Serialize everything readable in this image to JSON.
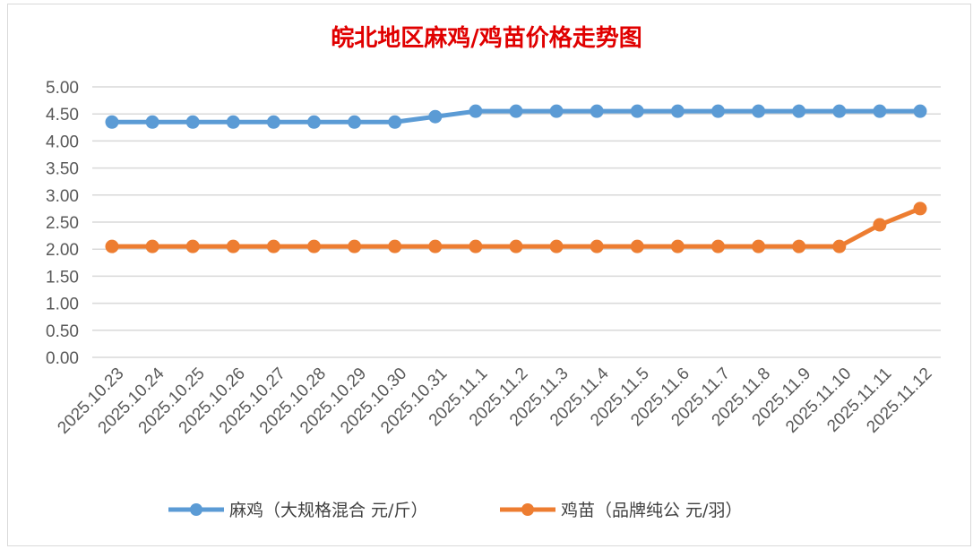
{
  "chart_data": {
    "type": "line",
    "title": "皖北地区麻鸡/鸡苗价格走势图",
    "xlabel": "",
    "ylabel": "",
    "ylim": [
      0,
      5
    ],
    "yticks": [
      "0.00",
      "0.50",
      "1.00",
      "1.50",
      "2.00",
      "2.50",
      "3.00",
      "3.50",
      "4.00",
      "4.50",
      "5.00"
    ],
    "grid": true,
    "legend_position": "bottom",
    "categories": [
      "2025.10.23",
      "2025.10.24",
      "2025.10.25",
      "2025.10.26",
      "2025.10.27",
      "2025.10.28",
      "2025.10.29",
      "2025.10.30",
      "2025.10.31",
      "2025.11.1",
      "2025.11.2",
      "2025.11.3",
      "2025.11.4",
      "2025.11.5",
      "2025.11.6",
      "2025.11.7",
      "2025.11.8",
      "2025.11.9",
      "2025.11.10",
      "2025.11.11",
      "2025.11.12"
    ],
    "series": [
      {
        "name": "麻鸡（大规格混合 元/斤）",
        "color": "#5b9bd5",
        "values": [
          4.35,
          4.35,
          4.35,
          4.35,
          4.35,
          4.35,
          4.35,
          4.35,
          4.45,
          4.55,
          4.55,
          4.55,
          4.55,
          4.55,
          4.55,
          4.55,
          4.55,
          4.55,
          4.55,
          4.55,
          4.55
        ]
      },
      {
        "name": "鸡苗（品牌纯公 元/羽）",
        "color": "#ed7d31",
        "values": [
          2.05,
          2.05,
          2.05,
          2.05,
          2.05,
          2.05,
          2.05,
          2.05,
          2.05,
          2.05,
          2.05,
          2.05,
          2.05,
          2.05,
          2.05,
          2.05,
          2.05,
          2.05,
          2.05,
          2.45,
          2.75
        ]
      }
    ]
  }
}
